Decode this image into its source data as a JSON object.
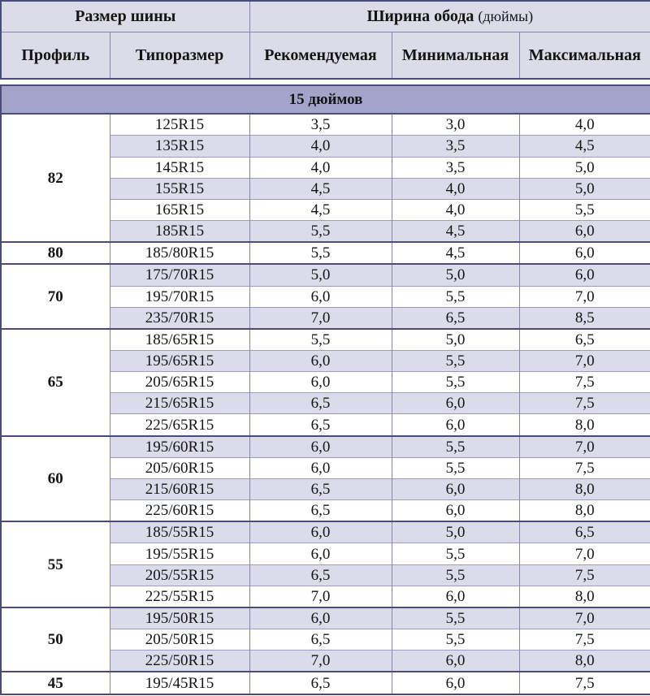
{
  "header": {
    "tire_size": "Размер шины",
    "rim_width": "Ширина обода",
    "rim_width_note": "(дюймы)",
    "col_profile": "Профиль",
    "col_typesize": "Типоразмер",
    "col_recommended": "Рекомендуемая",
    "col_min": "Минимальная",
    "col_max": "Максимальная"
  },
  "section": {
    "title": "15 дюймов"
  },
  "groups": [
    {
      "profile": "82",
      "rows": [
        [
          "125R15",
          "3,5",
          "3,0",
          "4,0"
        ],
        [
          "135R15",
          "4,0",
          "3,5",
          "4,5"
        ],
        [
          "145R15",
          "4,0",
          "3,5",
          "5,0"
        ],
        [
          "155R15",
          "4,5",
          "4,0",
          "5,0"
        ],
        [
          "165R15",
          "4,5",
          "4,0",
          "5,5"
        ],
        [
          "185R15",
          "5,5",
          "4,5",
          "6,0"
        ]
      ]
    },
    {
      "profile": "80",
      "rows": [
        [
          "185/80R15",
          "5,5",
          "4,5",
          "6,0"
        ]
      ]
    },
    {
      "profile": "70",
      "rows": [
        [
          "175/70R15",
          "5,0",
          "5,0",
          "6,0"
        ],
        [
          "195/70R15",
          "6,0",
          "5,5",
          "7,0"
        ],
        [
          "235/70R15",
          "7,0",
          "6,5",
          "8,5"
        ]
      ]
    },
    {
      "profile": "65",
      "rows": [
        [
          "185/65R15",
          "5,5",
          "5,0",
          "6,5"
        ],
        [
          "195/65R15",
          "6,0",
          "5,5",
          "7,0"
        ],
        [
          "205/65R15",
          "6,0",
          "5,5",
          "7,5"
        ],
        [
          "215/65R15",
          "6,5",
          "6,0",
          "7,5"
        ],
        [
          "225/65R15",
          "6,5",
          "6,0",
          "8,0"
        ]
      ]
    },
    {
      "profile": "60",
      "rows": [
        [
          "195/60R15",
          "6,0",
          "5,5",
          "7,0"
        ],
        [
          "205/60R15",
          "6,0",
          "5,5",
          "7,5"
        ],
        [
          "215/60R15",
          "6,5",
          "6,0",
          "8,0"
        ],
        [
          "225/60R15",
          "6,5",
          "6,0",
          "8,0"
        ]
      ]
    },
    {
      "profile": "55",
      "rows": [
        [
          "185/55R15",
          "6,0",
          "5,0",
          "6,5"
        ],
        [
          "195/55R15",
          "6,0",
          "5,5",
          "7,0"
        ],
        [
          "205/55R15",
          "6,5",
          "5,5",
          "7,5"
        ],
        [
          "225/55R15",
          "7,0",
          "6,0",
          "8,0"
        ]
      ]
    },
    {
      "profile": "50",
      "rows": [
        [
          "195/50R15",
          "6,0",
          "5,5",
          "7,0"
        ],
        [
          "205/50R15",
          "6,5",
          "5,5",
          "7,5"
        ],
        [
          "225/50R15",
          "7,0",
          "6,0",
          "8,0"
        ]
      ]
    },
    {
      "profile": "45",
      "rows": [
        [
          "195/45R15",
          "6,5",
          "6,0",
          "7,5"
        ]
      ]
    }
  ],
  "colors": {
    "border_dark": "#4b4b78",
    "border_mid": "#8585b5",
    "row_line": "#9b9bc6",
    "header_bg": "#dcdce8",
    "band_bg": "#a4a4ca",
    "row_shaded": "#dbdbe9",
    "row_white": "#ffffff",
    "text": "#141414"
  }
}
